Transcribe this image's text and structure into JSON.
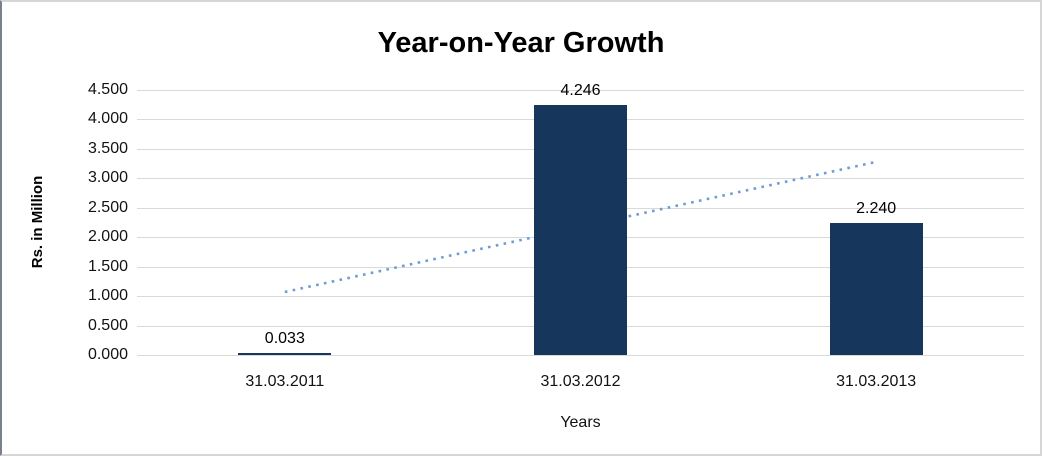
{
  "chart_data": {
    "type": "bar",
    "title": "Year-on-Year Growth",
    "xlabel": "Years",
    "ylabel": "Rs. in Million",
    "categories": [
      "31.03.2011",
      "31.03.2012",
      "31.03.2013"
    ],
    "values": [
      0.033,
      4.246,
      2.24
    ],
    "data_labels": [
      "0.033",
      "4.246",
      "2.240"
    ],
    "ylim": [
      0,
      4.5
    ],
    "ytick_step": 0.5,
    "ytick_labels": [
      "0.000",
      "0.500",
      "1.000",
      "1.500",
      "2.000",
      "2.500",
      "3.000",
      "3.500",
      "4.000",
      "4.500"
    ],
    "grid": true,
    "legend": false,
    "trendline": {
      "type": "linear",
      "style": "dotted",
      "start_value": 1.07,
      "end_value": 3.28
    },
    "colors": {
      "bar": "#16365c",
      "trendline": "#6f9bd8",
      "gridline": "#d9d9d9",
      "title": "#000000",
      "tick_text": "#121212",
      "background": "#ffffff"
    }
  }
}
